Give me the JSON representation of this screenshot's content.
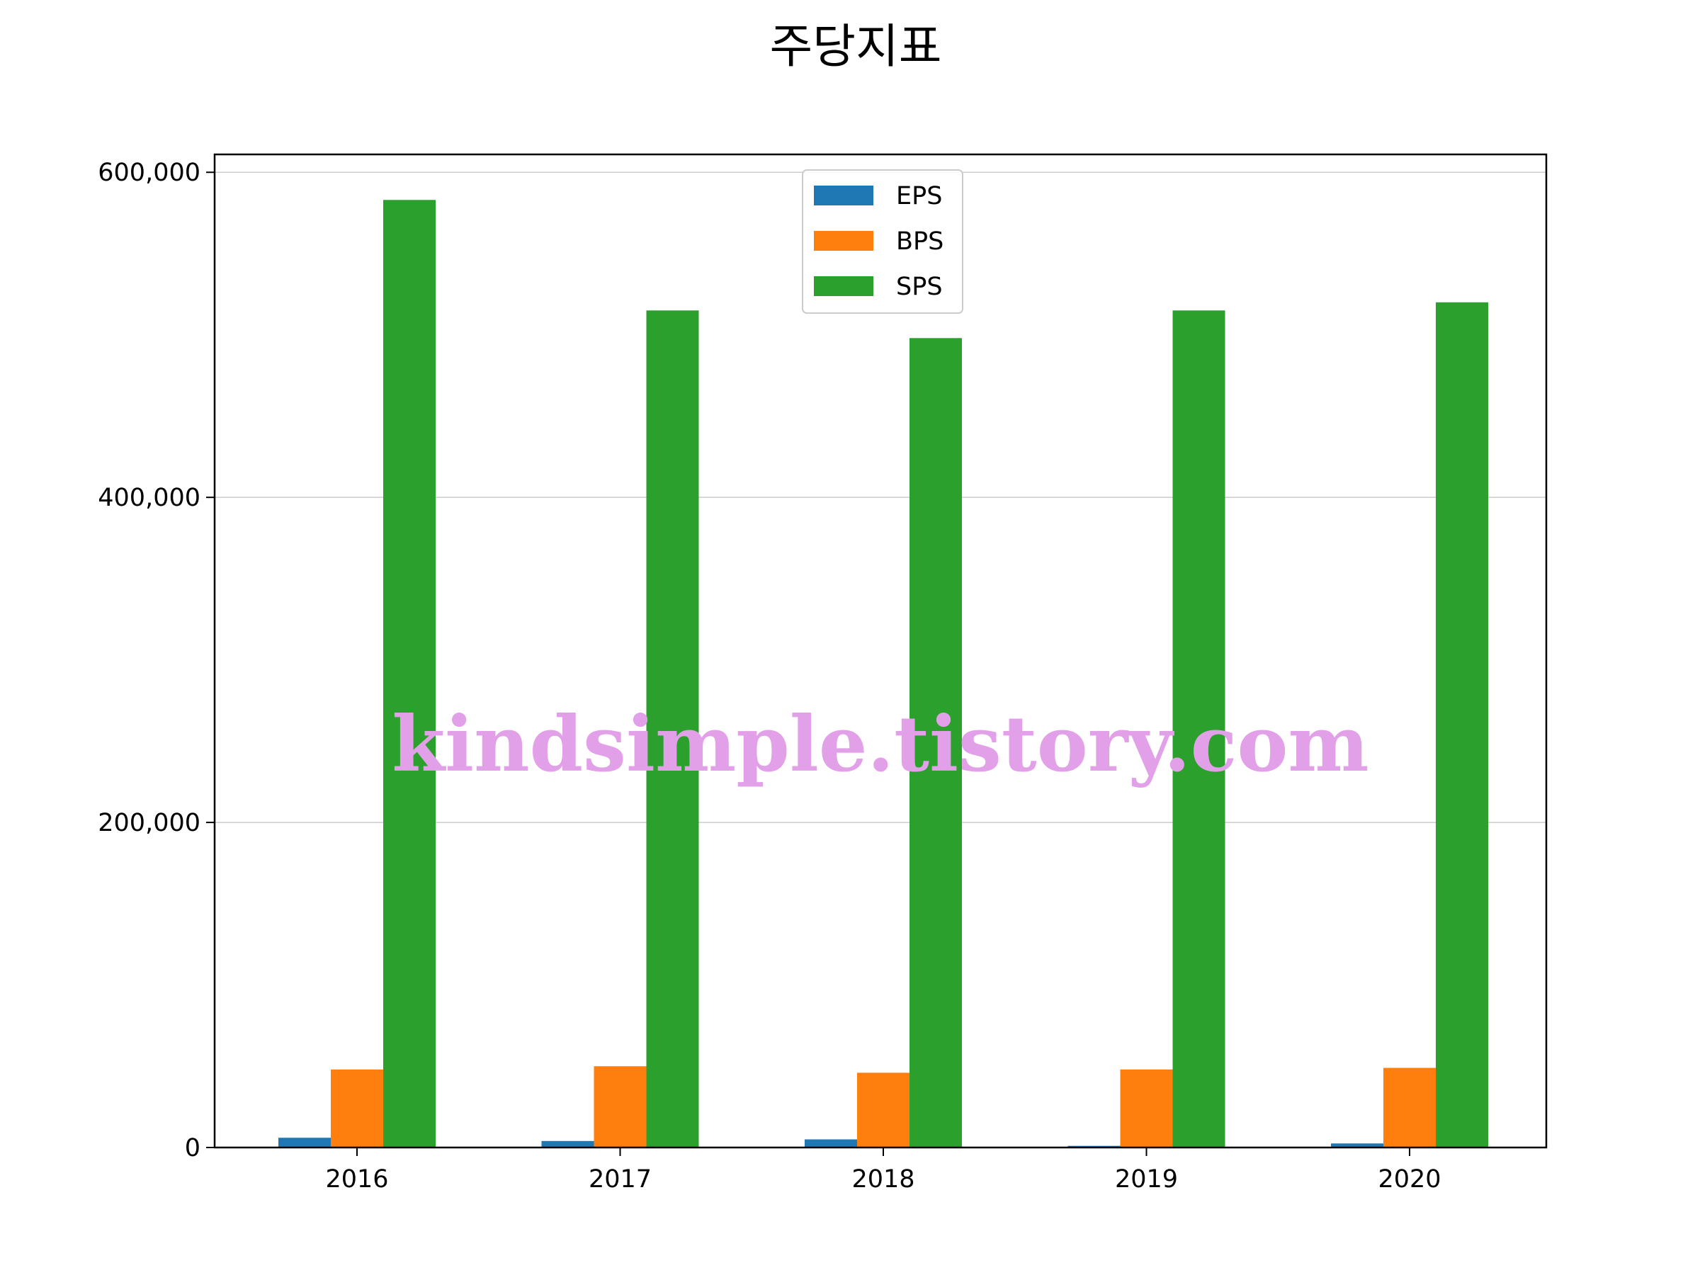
{
  "chart_data": {
    "type": "bar",
    "title": "주당지표",
    "xlabel": "",
    "ylabel": "",
    "categories": [
      "2016",
      "2017",
      "2018",
      "2019",
      "2020"
    ],
    "series": [
      {
        "name": "EPS",
        "color": "#1f77b4",
        "values": [
          6000,
          4000,
          5000,
          1000,
          2500
        ]
      },
      {
        "name": "BPS",
        "color": "#ff7f0e",
        "values": [
          48000,
          50000,
          46000,
          48000,
          49000
        ]
      },
      {
        "name": "SPS",
        "color": "#2ca02c",
        "values": [
          583000,
          515000,
          498000,
          515000,
          520000
        ]
      }
    ],
    "ylim": [
      0,
      611000
    ],
    "yticks": [
      0,
      200000,
      400000,
      600000
    ],
    "ytick_labels": [
      "0",
      "200,000",
      "400,000",
      "600,000"
    ],
    "grid": "y",
    "legend_position": "upper-center"
  },
  "watermark": "kindsimple.tistory.com"
}
